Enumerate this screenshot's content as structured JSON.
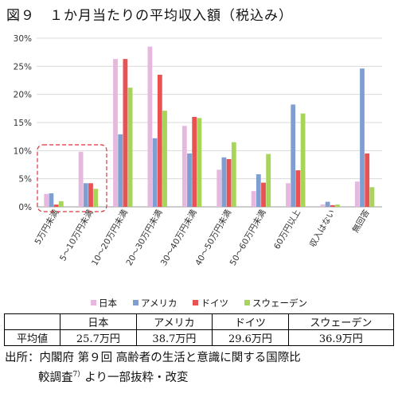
{
  "figure_title": "図９　１か月当たりの平均収入額（税込み）",
  "chart_data": {
    "type": "bar",
    "ylim": [
      0,
      30
    ],
    "yticks": [
      "0%",
      "5%",
      "10%",
      "15%",
      "20%",
      "25%",
      "30%"
    ],
    "categories": [
      "5万円未満",
      "5～10万円未満",
      "10～20万円未満",
      "20～30万円未満",
      "30～40万円未満",
      "40～50万円未満",
      "50～60万円未満",
      "60万円以上",
      "収入はない",
      "無回答"
    ],
    "series": [
      {
        "name": "日本",
        "color": "#e6b8dd",
        "values": [
          2.3,
          9.8,
          26.3,
          28.5,
          14.4,
          6.6,
          2.8,
          4.2,
          0.4,
          4.5
        ]
      },
      {
        "name": "アメリカ",
        "color": "#7f9fd3",
        "values": [
          2.4,
          4.2,
          12.9,
          12.2,
          9.5,
          8.8,
          5.8,
          18.2,
          0.9,
          24.6
        ]
      },
      {
        "name": "ドイツ",
        "color": "#e85252",
        "values": [
          0.4,
          4.2,
          26.3,
          23.5,
          16.0,
          8.5,
          4.3,
          6.5,
          0.3,
          9.5
        ]
      },
      {
        "name": "スウェーデン",
        "color": "#a8d45a",
        "values": [
          1.0,
          3.2,
          21.2,
          17.1,
          15.8,
          11.5,
          9.4,
          16.6,
          0.4,
          3.5
        ]
      }
    ],
    "highlight_label": "dashed box around first two categories",
    "grid": "horizontal"
  },
  "table": {
    "header": [
      "",
      "日本",
      "アメリカ",
      "ドイツ",
      "スウェーデン"
    ],
    "row_label": "平均値",
    "row_values": [
      "25.7万円",
      "38.7万円",
      "29.6万円",
      "36.9万円"
    ]
  },
  "source": {
    "line1": "出所：内閣府 第９回 高齢者の生活と意識に関する国際比",
    "line2_main": "較調査",
    "line2_sup": "7）",
    "line2_tail": "より一部抜粋・改変"
  }
}
